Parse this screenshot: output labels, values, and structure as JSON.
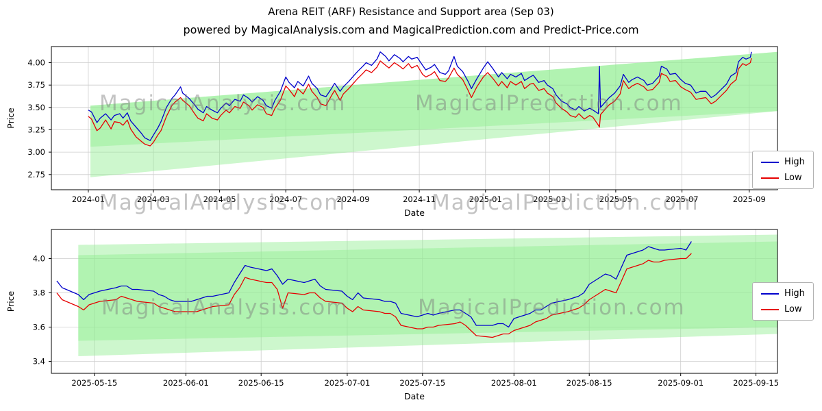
{
  "figure": {
    "title": "Arena REIT (ARF) Resistance and Support area (Sep 03)",
    "subtitle": "powered by MagicalAnalysis.com and MagicalPrediction.com and Predict-Price.com",
    "watermarks": [
      "MagicalAnalysis.com",
      "MagicalPrediction.com"
    ]
  },
  "colors": {
    "high": "#0000cc",
    "low": "#e60000",
    "band": "#90ee90",
    "grid": "#cccccc",
    "axis": "#000000",
    "watermark": "#7a7a7a",
    "legend_border": "#b3b3b3"
  },
  "chart_data": [
    {
      "type": "line",
      "xlabel": "Date",
      "ylabel": "Price",
      "xlim": [
        "2023-11-28",
        "2025-09-27"
      ],
      "ylim": [
        2.58,
        4.18
      ],
      "grid": true,
      "legend": {
        "position": "center right",
        "entries": [
          "High",
          "Low"
        ]
      },
      "xticks": [
        "2024-01",
        "2024-03",
        "2024-05",
        "2024-07",
        "2024-09",
        "2024-11",
        "2025-01",
        "2025-03",
        "2025-05",
        "2025-07",
        "2025-09"
      ],
      "yticks": [
        2.75,
        3.0,
        3.25,
        3.5,
        3.75,
        4.0
      ],
      "ytick_labels": [
        "2.75",
        "3.00",
        "3.25",
        "3.50",
        "3.75",
        "4.00"
      ],
      "bands": [
        {
          "x": [
            "2024-01-03",
            "2025-09-27"
          ],
          "bottom": [
            2.72,
            3.46
          ],
          "top": [
            3.52,
            4.12
          ]
        },
        {
          "x": [
            "2024-01-03",
            "2025-09-27"
          ],
          "bottom": [
            3.06,
            3.46
          ],
          "top": [
            3.52,
            4.12
          ]
        }
      ],
      "x": [
        "2024-01-01",
        "2024-01-04",
        "2024-01-09",
        "2024-01-12",
        "2024-01-17",
        "2024-01-22",
        "2024-01-25",
        "2024-01-30",
        "2024-02-02",
        "2024-02-06",
        "2024-02-09",
        "2024-02-14",
        "2024-02-19",
        "2024-02-22",
        "2024-02-27",
        "2024-03-01",
        "2024-03-05",
        "2024-03-08",
        "2024-03-13",
        "2024-03-18",
        "2024-03-21",
        "2024-03-26",
        "2024-03-28",
        "2024-04-03",
        "2024-04-08",
        "2024-04-11",
        "2024-04-16",
        "2024-04-19",
        "2024-04-24",
        "2024-04-29",
        "2024-05-02",
        "2024-05-07",
        "2024-05-10",
        "2024-05-15",
        "2024-05-20",
        "2024-05-23",
        "2024-05-28",
        "2024-05-31",
        "2024-06-05",
        "2024-06-10",
        "2024-06-13",
        "2024-06-18",
        "2024-06-21",
        "2024-06-26",
        "2024-07-01",
        "2024-07-04",
        "2024-07-09",
        "2024-07-12",
        "2024-07-17",
        "2024-07-22",
        "2024-07-25",
        "2024-07-30",
        "2024-08-02",
        "2024-08-07",
        "2024-08-12",
        "2024-08-15",
        "2024-08-20",
        "2024-08-23",
        "2024-08-28",
        "2024-09-02",
        "2024-09-05",
        "2024-09-10",
        "2024-09-13",
        "2024-09-18",
        "2024-09-23",
        "2024-09-26",
        "2024-10-01",
        "2024-10-04",
        "2024-10-09",
        "2024-10-14",
        "2024-10-17",
        "2024-10-22",
        "2024-10-25",
        "2024-10-30",
        "2024-11-04",
        "2024-11-07",
        "2024-11-12",
        "2024-11-15",
        "2024-11-20",
        "2024-11-25",
        "2024-11-28",
        "2024-12-03",
        "2024-12-06",
        "2024-12-11",
        "2024-12-16",
        "2024-12-19",
        "2024-12-24",
        "2024-12-30",
        "2025-01-03",
        "2025-01-08",
        "2025-01-13",
        "2025-01-16",
        "2025-01-21",
        "2025-01-24",
        "2025-01-29",
        "2025-02-03",
        "2025-02-06",
        "2025-02-11",
        "2025-02-14",
        "2025-02-19",
        "2025-02-24",
        "2025-02-27",
        "2025-03-04",
        "2025-03-07",
        "2025-03-12",
        "2025-03-17",
        "2025-03-20",
        "2025-03-25",
        "2025-03-28",
        "2025-04-02",
        "2025-04-07",
        "2025-04-10",
        "2025-04-15",
        "2025-04-16",
        "2025-04-17",
        "2025-04-22",
        "2025-04-25",
        "2025-04-30",
        "2025-05-05",
        "2025-05-08",
        "2025-05-13",
        "2025-05-16",
        "2025-05-21",
        "2025-05-27",
        "2025-05-30",
        "2025-06-04",
        "2025-06-10",
        "2025-06-12",
        "2025-06-17",
        "2025-06-20",
        "2025-06-25",
        "2025-06-30",
        "2025-07-04",
        "2025-07-09",
        "2025-07-14",
        "2025-07-18",
        "2025-07-23",
        "2025-07-28",
        "2025-08-01",
        "2025-08-06",
        "2025-08-11",
        "2025-08-15",
        "2025-08-20",
        "2025-08-22",
        "2025-08-26",
        "2025-08-29",
        "2025-09-02",
        "2025-09-03"
      ],
      "series": [
        {
          "name": "High",
          "color": "#0000cc",
          "values": [
            3.47,
            3.45,
            3.33,
            3.38,
            3.43,
            3.36,
            3.41,
            3.43,
            3.38,
            3.44,
            3.35,
            3.28,
            3.21,
            3.16,
            3.13,
            3.19,
            3.27,
            3.34,
            3.5,
            3.6,
            3.64,
            3.73,
            3.66,
            3.6,
            3.53,
            3.48,
            3.44,
            3.51,
            3.47,
            3.44,
            3.49,
            3.55,
            3.52,
            3.59,
            3.57,
            3.64,
            3.6,
            3.56,
            3.62,
            3.58,
            3.52,
            3.49,
            3.58,
            3.68,
            3.84,
            3.78,
            3.72,
            3.79,
            3.74,
            3.85,
            3.77,
            3.71,
            3.64,
            3.62,
            3.71,
            3.77,
            3.68,
            3.73,
            3.79,
            3.86,
            3.9,
            3.96,
            4.0,
            3.97,
            4.04,
            4.12,
            4.07,
            4.02,
            4.09,
            4.05,
            4.01,
            4.07,
            4.04,
            4.06,
            3.97,
            3.92,
            3.95,
            3.98,
            3.89,
            3.87,
            3.91,
            4.07,
            3.96,
            3.9,
            3.79,
            3.71,
            3.82,
            3.94,
            4.01,
            3.93,
            3.84,
            3.89,
            3.82,
            3.87,
            3.84,
            3.88,
            3.8,
            3.84,
            3.86,
            3.78,
            3.8,
            3.75,
            3.71,
            3.64,
            3.57,
            3.54,
            3.5,
            3.47,
            3.51,
            3.46,
            3.49,
            3.47,
            3.43,
            3.96,
            3.5,
            3.57,
            3.61,
            3.66,
            3.74,
            3.87,
            3.78,
            3.81,
            3.84,
            3.8,
            3.75,
            3.77,
            3.85,
            3.96,
            3.93,
            3.87,
            3.88,
            3.81,
            3.77,
            3.75,
            3.66,
            3.68,
            3.68,
            3.61,
            3.64,
            3.7,
            3.76,
            3.85,
            3.89,
            4.01,
            4.06,
            4.04,
            4.06,
            4.12
          ]
        },
        {
          "name": "Low",
          "color": "#e60000",
          "values": [
            3.4,
            3.37,
            3.24,
            3.27,
            3.36,
            3.26,
            3.34,
            3.33,
            3.3,
            3.36,
            3.26,
            3.17,
            3.12,
            3.09,
            3.07,
            3.11,
            3.19,
            3.24,
            3.4,
            3.52,
            3.56,
            3.61,
            3.58,
            3.52,
            3.43,
            3.38,
            3.35,
            3.43,
            3.38,
            3.36,
            3.41,
            3.47,
            3.44,
            3.51,
            3.49,
            3.56,
            3.52,
            3.47,
            3.53,
            3.5,
            3.43,
            3.41,
            3.49,
            3.58,
            3.74,
            3.7,
            3.62,
            3.71,
            3.65,
            3.76,
            3.68,
            3.61,
            3.54,
            3.52,
            3.63,
            3.69,
            3.58,
            3.65,
            3.71,
            3.78,
            3.82,
            3.88,
            3.92,
            3.89,
            3.95,
            4.02,
            3.97,
            3.94,
            4.0,
            3.96,
            3.93,
            3.99,
            3.94,
            3.97,
            3.87,
            3.84,
            3.87,
            3.9,
            3.8,
            3.79,
            3.83,
            3.94,
            3.87,
            3.81,
            3.69,
            3.61,
            3.73,
            3.84,
            3.89,
            3.82,
            3.74,
            3.79,
            3.72,
            3.79,
            3.75,
            3.79,
            3.71,
            3.76,
            3.77,
            3.69,
            3.71,
            3.66,
            3.62,
            3.55,
            3.49,
            3.45,
            3.41,
            3.39,
            3.43,
            3.37,
            3.41,
            3.39,
            3.3,
            3.28,
            3.42,
            3.49,
            3.53,
            3.57,
            3.65,
            3.8,
            3.71,
            3.74,
            3.77,
            3.73,
            3.69,
            3.7,
            3.78,
            3.88,
            3.85,
            3.79,
            3.8,
            3.73,
            3.7,
            3.67,
            3.59,
            3.6,
            3.61,
            3.54,
            3.57,
            3.63,
            3.69,
            3.76,
            3.81,
            3.93,
            3.99,
            3.97,
            4.0,
            4.05
          ]
        }
      ]
    },
    {
      "type": "line",
      "xlabel": "Date",
      "ylabel": "Price",
      "xlim": [
        "2025-05-07",
        "2025-09-19"
      ],
      "ylim": [
        3.33,
        4.17
      ],
      "grid": true,
      "legend": {
        "position": "center right",
        "entries": [
          "High",
          "Low"
        ]
      },
      "xticks": [
        "2025-05-15",
        "2025-06-01",
        "2025-06-15",
        "2025-07-01",
        "2025-07-15",
        "2025-08-01",
        "2025-08-15",
        "2025-09-01",
        "2025-09-15"
      ],
      "yticks": [
        3.4,
        3.6,
        3.8,
        4.0
      ],
      "ytick_labels": [
        "3.4",
        "3.6",
        "3.8",
        "4.0"
      ],
      "bands": [
        {
          "x": [
            "2025-05-12",
            "2025-09-19"
          ],
          "bottom": [
            3.43,
            3.56
          ],
          "top": [
            4.08,
            4.14
          ]
        },
        {
          "x": [
            "2025-05-12",
            "2025-09-19"
          ],
          "bottom": [
            3.52,
            3.6
          ],
          "top": [
            4.02,
            4.1
          ]
        }
      ],
      "x": [
        "2025-05-08",
        "2025-05-09",
        "2025-05-12",
        "2025-05-13",
        "2025-05-14",
        "2025-05-15",
        "2025-05-16",
        "2025-05-19",
        "2025-05-20",
        "2025-05-21",
        "2025-05-22",
        "2025-05-23",
        "2025-05-26",
        "2025-05-27",
        "2025-05-28",
        "2025-05-29",
        "2025-05-30",
        "2025-06-02",
        "2025-06-03",
        "2025-06-04",
        "2025-06-05",
        "2025-06-06",
        "2025-06-09",
        "2025-06-10",
        "2025-06-11",
        "2025-06-12",
        "2025-06-13",
        "2025-06-16",
        "2025-06-17",
        "2025-06-18",
        "2025-06-19",
        "2025-06-20",
        "2025-06-23",
        "2025-06-24",
        "2025-06-25",
        "2025-06-26",
        "2025-06-27",
        "2025-06-30",
        "2025-07-01",
        "2025-07-02",
        "2025-07-03",
        "2025-07-04",
        "2025-07-07",
        "2025-07-08",
        "2025-07-09",
        "2025-07-10",
        "2025-07-11",
        "2025-07-14",
        "2025-07-15",
        "2025-07-16",
        "2025-07-17",
        "2025-07-18",
        "2025-07-21",
        "2025-07-22",
        "2025-07-23",
        "2025-07-24",
        "2025-07-25",
        "2025-07-28",
        "2025-07-29",
        "2025-07-30",
        "2025-07-31",
        "2025-08-01",
        "2025-08-04",
        "2025-08-05",
        "2025-08-06",
        "2025-08-07",
        "2025-08-08",
        "2025-08-11",
        "2025-08-12",
        "2025-08-13",
        "2025-08-14",
        "2025-08-15",
        "2025-08-18",
        "2025-08-19",
        "2025-08-20",
        "2025-08-21",
        "2025-08-22",
        "2025-08-25",
        "2025-08-26",
        "2025-08-27",
        "2025-08-28",
        "2025-08-29",
        "2025-09-01",
        "2025-09-02",
        "2025-09-03"
      ],
      "series": [
        {
          "name": "High",
          "color": "#0000cc",
          "values": [
            3.87,
            3.83,
            3.79,
            3.76,
            3.79,
            3.8,
            3.81,
            3.83,
            3.84,
            3.84,
            3.82,
            3.82,
            3.81,
            3.79,
            3.78,
            3.76,
            3.75,
            3.75,
            3.76,
            3.77,
            3.78,
            3.78,
            3.8,
            3.86,
            3.91,
            3.96,
            3.95,
            3.93,
            3.94,
            3.9,
            3.85,
            3.88,
            3.86,
            3.87,
            3.88,
            3.84,
            3.82,
            3.81,
            3.78,
            3.76,
            3.8,
            3.77,
            3.76,
            3.75,
            3.75,
            3.74,
            3.68,
            3.66,
            3.67,
            3.68,
            3.67,
            3.68,
            3.7,
            3.7,
            3.68,
            3.66,
            3.61,
            3.61,
            3.62,
            3.62,
            3.6,
            3.65,
            3.68,
            3.7,
            3.7,
            3.72,
            3.74,
            3.76,
            3.77,
            3.78,
            3.8,
            3.85,
            3.91,
            3.9,
            3.88,
            3.95,
            4.02,
            4.05,
            4.07,
            4.06,
            4.05,
            4.05,
            4.06,
            4.05,
            4.1
          ]
        },
        {
          "name": "Low",
          "color": "#e60000",
          "values": [
            3.8,
            3.76,
            3.72,
            3.7,
            3.73,
            3.74,
            3.75,
            3.76,
            3.78,
            3.77,
            3.76,
            3.75,
            3.74,
            3.72,
            3.71,
            3.7,
            3.69,
            3.69,
            3.69,
            3.7,
            3.71,
            3.72,
            3.73,
            3.79,
            3.83,
            3.89,
            3.88,
            3.86,
            3.86,
            3.82,
            3.71,
            3.8,
            3.79,
            3.8,
            3.8,
            3.77,
            3.75,
            3.74,
            3.71,
            3.69,
            3.72,
            3.7,
            3.69,
            3.68,
            3.68,
            3.66,
            3.61,
            3.59,
            3.59,
            3.6,
            3.6,
            3.61,
            3.62,
            3.63,
            3.61,
            3.58,
            3.55,
            3.54,
            3.55,
            3.56,
            3.56,
            3.58,
            3.61,
            3.63,
            3.64,
            3.65,
            3.67,
            3.69,
            3.7,
            3.71,
            3.73,
            3.76,
            3.82,
            3.81,
            3.8,
            3.87,
            3.94,
            3.97,
            3.99,
            3.98,
            3.98,
            3.99,
            4.0,
            4.0,
            4.03
          ]
        }
      ]
    }
  ]
}
